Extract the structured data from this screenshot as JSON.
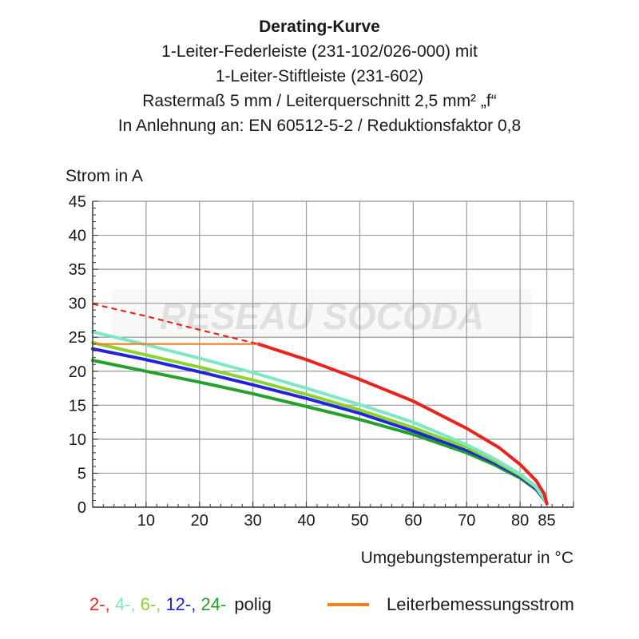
{
  "chart_data": {
    "type": "line",
    "title": "Derating-Kurve",
    "subtitle": [
      "1-Leiter-Federleiste (231-102/026-000) mit",
      "1-Leiter-Stiftleiste (231-602)",
      "Rastermaß 5 mm / Leiterquerschnitt 2,5 mm² „f“",
      "In Anlehnung an: EN 60512-5-2 / Reduktionsfaktor 0,8"
    ],
    "xlabel": "Umgebungstemperatur in °C",
    "ylabel": "Strom in A",
    "xlim": [
      0,
      90
    ],
    "ylim": [
      0,
      45
    ],
    "xticks": [
      10,
      20,
      30,
      40,
      50,
      60,
      70,
      80,
      85
    ],
    "yticks": [
      0,
      5,
      10,
      15,
      20,
      25,
      30,
      35,
      40,
      45
    ],
    "grid": true,
    "series": [
      {
        "name": "2-",
        "color": "#e8241e",
        "dashed_x": [
          0,
          10,
          20,
          31
        ],
        "dashed_y": [
          29.9,
          28.1,
          26.1,
          24.0
        ],
        "x": [
          31,
          40,
          50,
          60,
          70,
          76,
          80,
          83,
          84.5,
          85
        ],
        "y": [
          24.0,
          21.7,
          18.8,
          15.6,
          11.6,
          8.8,
          6.3,
          3.9,
          2.0,
          0.5
        ]
      },
      {
        "name": "4-",
        "color": "#7de8c8",
        "x": [
          0,
          10,
          20,
          30,
          40,
          50,
          60,
          70,
          75,
          80,
          83,
          85
        ],
        "y": [
          25.8,
          23.9,
          21.9,
          19.8,
          17.5,
          15.1,
          12.5,
          9.2,
          7.2,
          4.9,
          3.0,
          0.6
        ]
      },
      {
        "name": "6-",
        "color": "#8ad42e",
        "x": [
          0,
          10,
          20,
          30,
          40,
          50,
          60,
          70,
          75,
          80,
          83,
          85
        ],
        "y": [
          24.2,
          22.4,
          20.6,
          18.7,
          16.6,
          14.3,
          11.7,
          8.8,
          6.9,
          4.7,
          2.9,
          0.6
        ]
      },
      {
        "name": "12-",
        "color": "#2323dd",
        "x": [
          0,
          10,
          20,
          30,
          40,
          50,
          60,
          70,
          75,
          80,
          83,
          85
        ],
        "y": [
          23.3,
          21.7,
          19.9,
          18.0,
          16.0,
          13.8,
          11.2,
          8.4,
          6.6,
          4.5,
          2.7,
          0.6
        ]
      },
      {
        "name": "24-",
        "color": "#22a22a",
        "x": [
          0,
          10,
          20,
          30,
          40,
          50,
          60,
          70,
          75,
          80,
          83,
          85
        ],
        "y": [
          21.6,
          20.0,
          18.4,
          16.7,
          14.8,
          12.9,
          10.7,
          8.0,
          6.3,
          4.3,
          2.6,
          0.6
        ]
      }
    ],
    "rated_current": {
      "name": "Leiterbemessungsstrom",
      "color": "#f57c1f",
      "x": [
        0,
        31
      ],
      "y": [
        24.0,
        24.0
      ]
    }
  },
  "legend": {
    "polig_items": [
      {
        "label": "2-,",
        "color": "#e8241e"
      },
      {
        "label": "4-,",
        "color": "#7de8c8"
      },
      {
        "label": "6-,",
        "color": "#8ad42e"
      },
      {
        "label": "12-,",
        "color": "#2323dd"
      },
      {
        "label": "24-",
        "color": "#22a22a"
      }
    ],
    "polig_suffix": "polig",
    "rated_label": "Leiterbemessungsstrom",
    "rated_color": "#f57c1f"
  },
  "watermark": {
    "text": "RESEAU SOCODA"
  }
}
